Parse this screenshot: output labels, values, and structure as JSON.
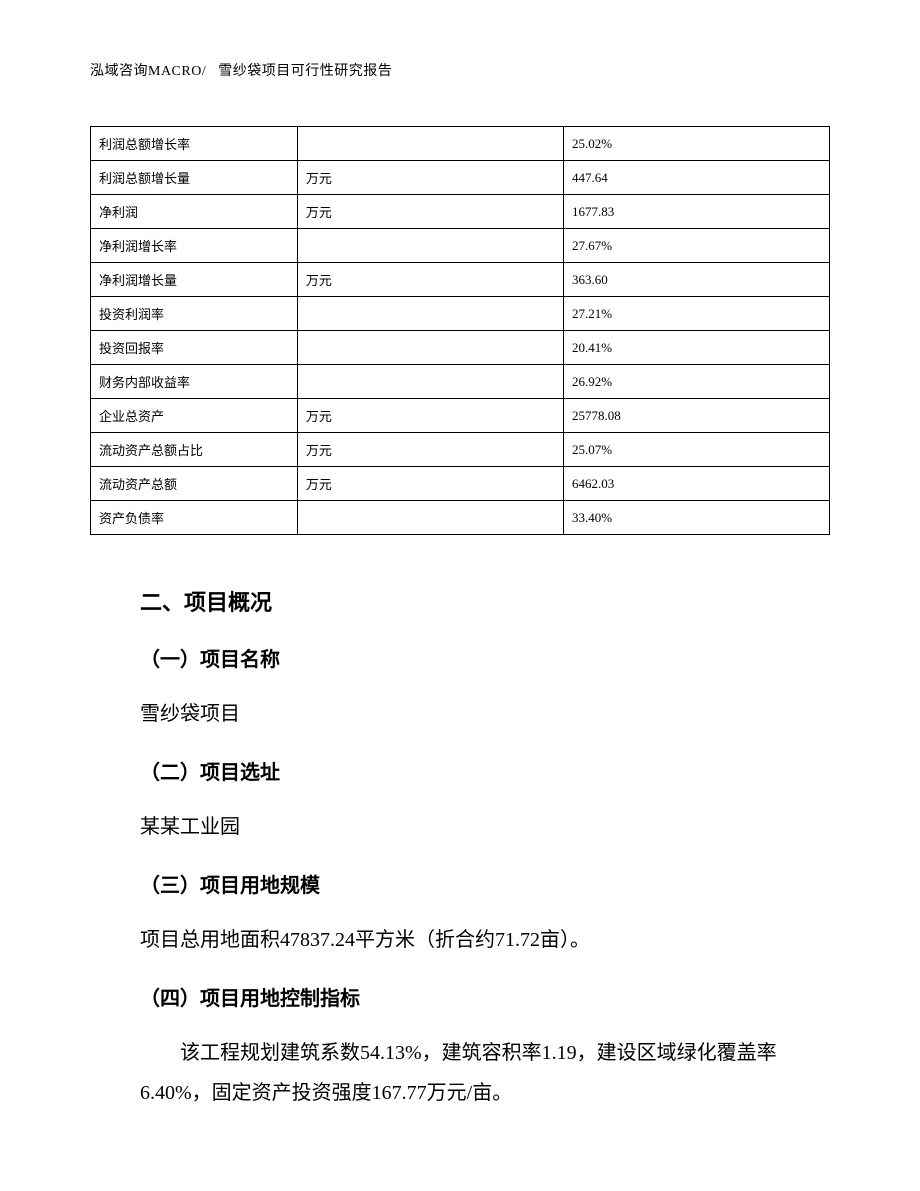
{
  "header": {
    "left": "泓域咨询MACRO/",
    "right": "雪纱袋项目可行性研究报告"
  },
  "table": {
    "columns": {
      "metric_width_pct": 28,
      "unit_width_pct": 36,
      "value_width_pct": 36
    },
    "border_color": "#000000",
    "font_size_pt": 10,
    "rows": [
      {
        "metric": "利润总额增长率",
        "unit": "",
        "value": "25.02%"
      },
      {
        "metric": "利润总额增长量",
        "unit": "万元",
        "value": "447.64"
      },
      {
        "metric": "净利润",
        "unit": "万元",
        "value": "1677.83"
      },
      {
        "metric": "净利润增长率",
        "unit": "",
        "value": "27.67%"
      },
      {
        "metric": "净利润增长量",
        "unit": "万元",
        "value": "363.60"
      },
      {
        "metric": "投资利润率",
        "unit": "",
        "value": "27.21%"
      },
      {
        "metric": "投资回报率",
        "unit": "",
        "value": "20.41%"
      },
      {
        "metric": "财务内部收益率",
        "unit": "",
        "value": "26.92%"
      },
      {
        "metric": "企业总资产",
        "unit": "万元",
        "value": "25778.08"
      },
      {
        "metric": "流动资产总额占比",
        "unit": "万元",
        "value": "25.07%"
      },
      {
        "metric": "流动资产总额",
        "unit": "万元",
        "value": "6462.03"
      },
      {
        "metric": "资产负债率",
        "unit": "",
        "value": "33.40%"
      }
    ]
  },
  "sections": {
    "h2": "二、项目概况",
    "s1": {
      "heading": "（一）项目名称",
      "body": "雪纱袋项目"
    },
    "s2": {
      "heading": "（二）项目选址",
      "body": "某某工业园"
    },
    "s3": {
      "heading": "（三）项目用地规模",
      "body": "项目总用地面积47837.24平方米（折合约71.72亩）。"
    },
    "s4": {
      "heading": "（四）项目用地控制指标",
      "body": "该工程规划建筑系数54.13%，建筑容积率1.19，建设区域绿化覆盖率6.40%，固定资产投资强度167.77万元/亩。"
    }
  },
  "typography": {
    "body_font": "SimSun",
    "heading_font": "SimHei",
    "heading_fontsize_pt": 16,
    "body_fontsize_pt": 15,
    "line_height": 2.0,
    "text_color": "#000000",
    "background_color": "#ffffff"
  }
}
